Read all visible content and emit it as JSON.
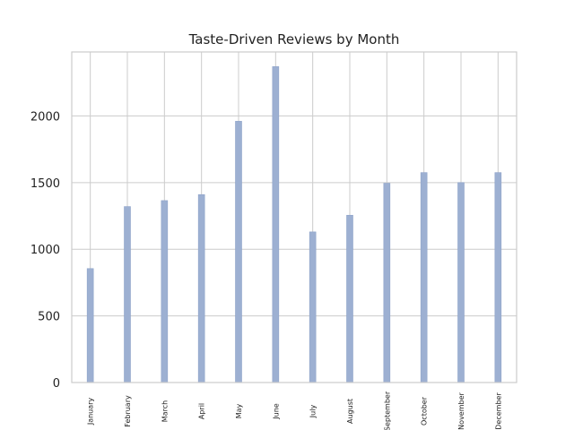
{
  "chart_data": {
    "type": "bar",
    "title": "Taste-Driven Reviews by Month",
    "xlabel": "",
    "ylabel": "",
    "categories": [
      "January",
      "February",
      "March",
      "April",
      "May",
      "June",
      "July",
      "August",
      "September",
      "October",
      "November",
      "December"
    ],
    "values": [
      855,
      1320,
      1365,
      1410,
      1960,
      2370,
      1130,
      1255,
      1495,
      1575,
      1500,
      1575
    ],
    "ylim": [
      0,
      2480
    ],
    "yticks": [
      0,
      500,
      1000,
      1500,
      2000
    ],
    "grid": true,
    "bar_color": "#9db0d2"
  }
}
